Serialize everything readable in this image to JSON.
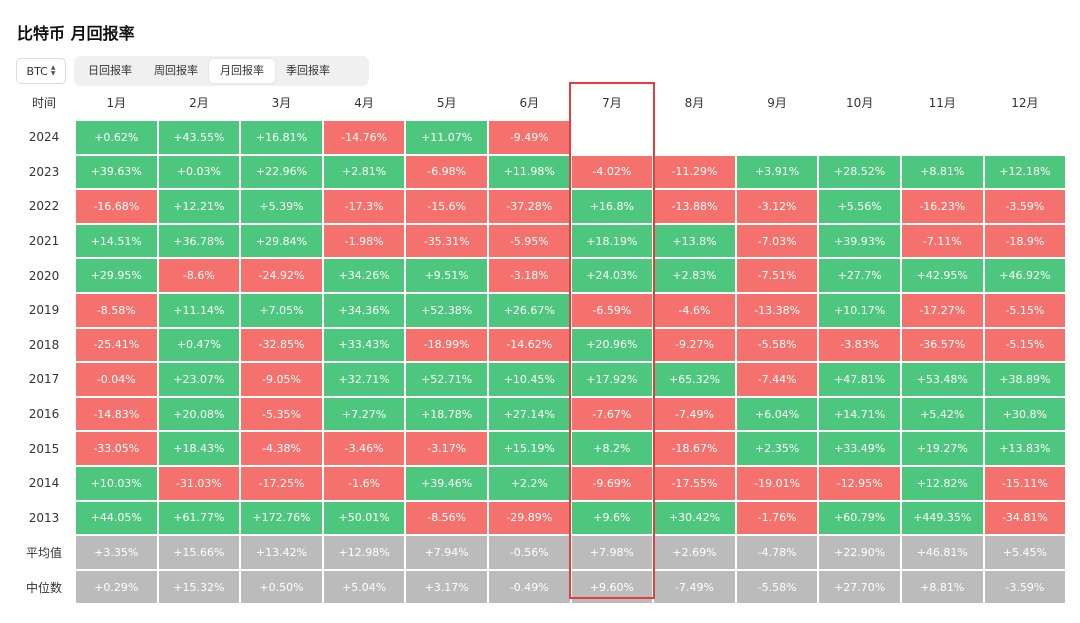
{
  "title": "比特币 月回报率",
  "asset_selector": {
    "value": "BTC"
  },
  "tabs": [
    {
      "label": "日回报率",
      "active": false
    },
    {
      "label": "周回报率",
      "active": false
    },
    {
      "label": "月回报率",
      "active": true
    },
    {
      "label": "季回报率",
      "active": false
    }
  ],
  "table": {
    "corner_header": "时间",
    "columns": [
      "1月",
      "2月",
      "3月",
      "4月",
      "5月",
      "6月",
      "7月",
      "8月",
      "9月",
      "10月",
      "11月",
      "12月"
    ],
    "highlighted_column": "7月",
    "rows": [
      {
        "label": "2024",
        "values": [
          "+0.62%",
          "+43.55%",
          "+16.81%",
          "-14.76%",
          "+11.07%",
          "-9.49%",
          "",
          "",
          "",
          "",
          "",
          ""
        ]
      },
      {
        "label": "2023",
        "values": [
          "+39.63%",
          "+0.03%",
          "+22.96%",
          "+2.81%",
          "-6.98%",
          "+11.98%",
          "-4.02%",
          "-11.29%",
          "+3.91%",
          "+28.52%",
          "+8.81%",
          "+12.18%"
        ]
      },
      {
        "label": "2022",
        "values": [
          "-16.68%",
          "+12.21%",
          "+5.39%",
          "-17.3%",
          "-15.6%",
          "-37.28%",
          "+16.8%",
          "-13.88%",
          "-3.12%",
          "+5.56%",
          "-16.23%",
          "-3.59%"
        ]
      },
      {
        "label": "2021",
        "values": [
          "+14.51%",
          "+36.78%",
          "+29.84%",
          "-1.98%",
          "-35.31%",
          "-5.95%",
          "+18.19%",
          "+13.8%",
          "-7.03%",
          "+39.93%",
          "-7.11%",
          "-18.9%"
        ]
      },
      {
        "label": "2020",
        "values": [
          "+29.95%",
          "-8.6%",
          "-24.92%",
          "+34.26%",
          "+9.51%",
          "-3.18%",
          "+24.03%",
          "+2.83%",
          "-7.51%",
          "+27.7%",
          "+42.95%",
          "+46.92%"
        ]
      },
      {
        "label": "2019",
        "values": [
          "-8.58%",
          "+11.14%",
          "+7.05%",
          "+34.36%",
          "+52.38%",
          "+26.67%",
          "-6.59%",
          "-4.6%",
          "-13.38%",
          "+10.17%",
          "-17.27%",
          "-5.15%"
        ]
      },
      {
        "label": "2018",
        "values": [
          "-25.41%",
          "+0.47%",
          "-32.85%",
          "+33.43%",
          "-18.99%",
          "-14.62%",
          "+20.96%",
          "-9.27%",
          "-5.58%",
          "-3.83%",
          "-36.57%",
          "-5.15%"
        ]
      },
      {
        "label": "2017",
        "values": [
          "-0.04%",
          "+23.07%",
          "-9.05%",
          "+32.71%",
          "+52.71%",
          "+10.45%",
          "+17.92%",
          "+65.32%",
          "-7.44%",
          "+47.81%",
          "+53.48%",
          "+38.89%"
        ]
      },
      {
        "label": "2016",
        "values": [
          "-14.83%",
          "+20.08%",
          "-5.35%",
          "+7.27%",
          "+18.78%",
          "+27.14%",
          "-7.67%",
          "-7.49%",
          "+6.04%",
          "+14.71%",
          "+5.42%",
          "+30.8%"
        ]
      },
      {
        "label": "2015",
        "values": [
          "-33.05%",
          "+18.43%",
          "-4.38%",
          "-3.46%",
          "-3.17%",
          "+15.19%",
          "+8.2%",
          "-18.67%",
          "+2.35%",
          "+33.49%",
          "+19.27%",
          "+13.83%"
        ]
      },
      {
        "label": "2014",
        "values": [
          "+10.03%",
          "-31.03%",
          "-17.25%",
          "-1.6%",
          "+39.46%",
          "+2.2%",
          "-9.69%",
          "-17.55%",
          "-19.01%",
          "-12.95%",
          "+12.82%",
          "-15.11%"
        ]
      },
      {
        "label": "2013",
        "values": [
          "+44.05%",
          "+61.77%",
          "+172.76%",
          "+50.01%",
          "-8.56%",
          "-29.89%",
          "+9.6%",
          "+30.42%",
          "-1.76%",
          "+60.79%",
          "+449.35%",
          "-34.81%"
        ]
      }
    ],
    "stat_rows": [
      {
        "label": "平均值",
        "values": [
          "+3.35%",
          "+15.66%",
          "+13.42%",
          "+12.98%",
          "+7.94%",
          "-0.56%",
          "+7.98%",
          "+2.69%",
          "-4.78%",
          "+22.90%",
          "+46.81%",
          "+5.45%"
        ]
      },
      {
        "label": "中位数",
        "values": [
          "+0.29%",
          "+15.32%",
          "+0.50%",
          "+5.04%",
          "+3.17%",
          "-0.49%",
          "+9.60%",
          "-7.49%",
          "-5.58%",
          "+27.70%",
          "+8.81%",
          "-3.59%"
        ]
      }
    ]
  },
  "colors": {
    "positive": "#4ec77e",
    "negative": "#f4716e",
    "stat": "#bbbbbb",
    "highlight_border": "#e33d3d"
  }
}
